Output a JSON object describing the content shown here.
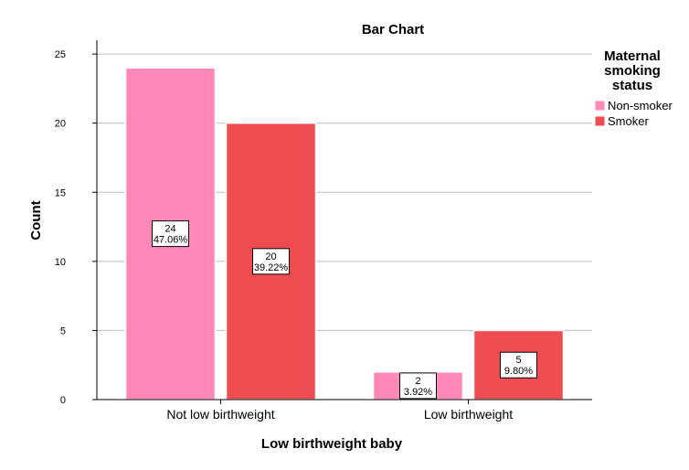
{
  "chart_data": {
    "type": "bar",
    "title": "Bar Chart",
    "xlabel": "Low birthweight baby",
    "ylabel": "Count",
    "categories": [
      "Not low birthweight",
      "Low birthweight"
    ],
    "series": [
      {
        "name": "Non-smoker",
        "color": "#ff88b8",
        "values": [
          24,
          2
        ],
        "labels": [
          [
            "24",
            "47.06%"
          ],
          [
            "2",
            "3.92%"
          ]
        ]
      },
      {
        "name": "Smoker",
        "color": "#ee4c50",
        "values": [
          20,
          5
        ],
        "labels": [
          [
            "20",
            "39.22%"
          ],
          [
            "5",
            "9.80%"
          ]
        ]
      }
    ],
    "ylim": [
      0,
      26
    ],
    "yticks": [
      0,
      5,
      10,
      15,
      20,
      25
    ],
    "grid": true,
    "legend": {
      "title_lines": [
        "Maternal",
        "smoking",
        "status"
      ],
      "placement": "right"
    }
  }
}
